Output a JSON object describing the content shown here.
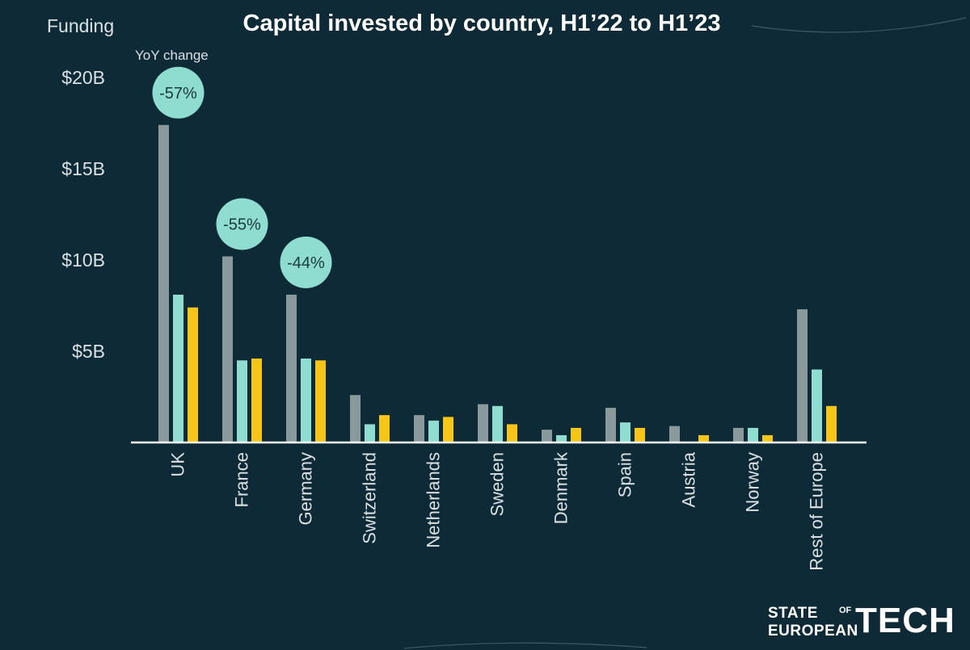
{
  "chart_data": {
    "type": "bar",
    "title": "Capital invested by country, H1’22 to H1’23",
    "ylabel": "Funding",
    "annotation_header": "YoY change",
    "ylim": [
      0,
      20
    ],
    "yticks": [
      {
        "value": 5,
        "label": "$5B"
      },
      {
        "value": 10,
        "label": "$10B"
      },
      {
        "value": 15,
        "label": "$15B"
      },
      {
        "value": 20,
        "label": "$20B"
      }
    ],
    "categories": [
      "UK",
      "France",
      "Germany",
      "Switzerland",
      "Netherlands",
      "Sweden",
      "Denmark",
      "Spain",
      "Austria",
      "Norway",
      "Rest of Europe"
    ],
    "series": [
      {
        "color": "#8a9a9c",
        "values": [
          17.4,
          10.2,
          8.1,
          2.6,
          1.5,
          2.1,
          0.7,
          1.9,
          0.9,
          0.8,
          7.3
        ]
      },
      {
        "color": "#8fdcd0",
        "values": [
          8.1,
          4.5,
          4.6,
          1.0,
          1.2,
          2.0,
          0.4,
          1.1,
          0.0,
          0.8,
          4.0
        ]
      },
      {
        "color": "#f5c518",
        "values": [
          7.4,
          4.6,
          4.5,
          1.5,
          1.4,
          1.0,
          0.8,
          0.8,
          0.4,
          0.4,
          2.0
        ]
      }
    ],
    "annotations": [
      {
        "category": "UK",
        "text": "-57%"
      },
      {
        "category": "France",
        "text": "-55%"
      },
      {
        "category": "Germany",
        "text": "-44%"
      }
    ],
    "grid": false,
    "legend": "none"
  },
  "brand": {
    "line1": "STATE",
    "line_of": "OF",
    "line2": "EUROPEAN",
    "big": "TECH"
  }
}
